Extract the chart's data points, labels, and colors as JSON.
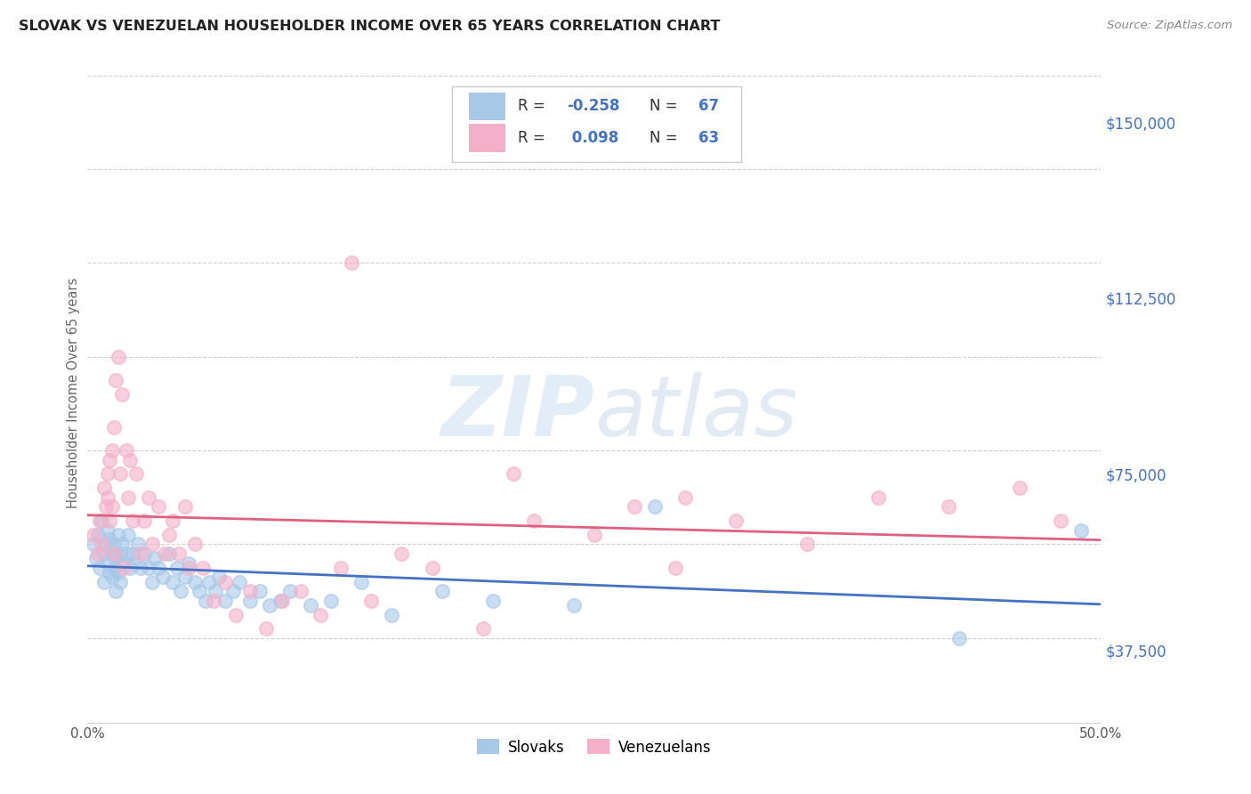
{
  "title": "SLOVAK VS VENEZUELAN HOUSEHOLDER INCOME OVER 65 YEARS CORRELATION CHART",
  "source": "Source: ZipAtlas.com",
  "ylabel": "Householder Income Over 65 years",
  "xlim": [
    0.0,
    0.5
  ],
  "ylim": [
    22000,
    162500
  ],
  "xticks": [
    0.0,
    0.1,
    0.2,
    0.3,
    0.4,
    0.5
  ],
  "xticklabels": [
    "0.0%",
    "",
    "",
    "",
    "",
    "50.0%"
  ],
  "ytick_positions": [
    37500,
    75000,
    112500,
    150000
  ],
  "ytick_labels": [
    "$37,500",
    "$75,000",
    "$112,500",
    "$150,000"
  ],
  "slovak_color": "#a8c8e8",
  "venezuelan_color": "#f4b0c8",
  "slovak_line_color": "#4472c4",
  "venezuelan_line_color": "#e06080",
  "ytick_color": "#4472c4",
  "watermark_color": "#c8ddf0",
  "grid_color": "#d0d0d0",
  "background_color": "#ffffff",
  "legend_box_color": "#ffffff",
  "legend_border_color": "#cccccc",
  "title_color": "#222222",
  "source_color": "#888888",
  "ylabel_color": "#666666",
  "xtick_color": "#555555",
  "slovak_R": -0.258,
  "slovak_N": 67,
  "venezuelan_R": 0.098,
  "venezuelan_N": 63,
  "slovak_x": [
    0.003,
    0.004,
    0.005,
    0.006,
    0.007,
    0.008,
    0.008,
    0.009,
    0.01,
    0.01,
    0.011,
    0.011,
    0.012,
    0.012,
    0.013,
    0.013,
    0.014,
    0.014,
    0.015,
    0.015,
    0.016,
    0.016,
    0.017,
    0.018,
    0.019,
    0.02,
    0.021,
    0.022,
    0.023,
    0.025,
    0.026,
    0.028,
    0.03,
    0.032,
    0.033,
    0.035,
    0.037,
    0.04,
    0.042,
    0.044,
    0.046,
    0.048,
    0.05,
    0.053,
    0.055,
    0.058,
    0.06,
    0.063,
    0.065,
    0.068,
    0.072,
    0.075,
    0.08,
    0.085,
    0.09,
    0.095,
    0.1,
    0.11,
    0.12,
    0.135,
    0.15,
    0.175,
    0.2,
    0.24,
    0.28,
    0.43,
    0.49
  ],
  "slovak_y": [
    60000,
    57000,
    62000,
    55000,
    65000,
    58000,
    52000,
    60000,
    56000,
    63000,
    54000,
    61000,
    58000,
    53000,
    60000,
    55000,
    57000,
    50000,
    62000,
    54000,
    58000,
    52000,
    60000,
    56000,
    58000,
    62000,
    55000,
    58000,
    56000,
    60000,
    55000,
    58000,
    55000,
    52000,
    57000,
    55000,
    53000,
    58000,
    52000,
    55000,
    50000,
    53000,
    56000,
    52000,
    50000,
    48000,
    52000,
    50000,
    53000,
    48000,
    50000,
    52000,
    48000,
    50000,
    47000,
    48000,
    50000,
    47000,
    48000,
    52000,
    45000,
    50000,
    48000,
    47000,
    68000,
    40000,
    63000
  ],
  "venezuelan_x": [
    0.003,
    0.005,
    0.006,
    0.007,
    0.008,
    0.009,
    0.01,
    0.01,
    0.011,
    0.011,
    0.012,
    0.012,
    0.013,
    0.013,
    0.014,
    0.015,
    0.016,
    0.017,
    0.018,
    0.019,
    0.02,
    0.021,
    0.022,
    0.024,
    0.026,
    0.028,
    0.03,
    0.032,
    0.035,
    0.038,
    0.04,
    0.042,
    0.045,
    0.048,
    0.05,
    0.053,
    0.057,
    0.062,
    0.068,
    0.073,
    0.08,
    0.088,
    0.096,
    0.105,
    0.115,
    0.125,
    0.14,
    0.155,
    0.17,
    0.195,
    0.22,
    0.25,
    0.27,
    0.295,
    0.32,
    0.355,
    0.39,
    0.425,
    0.46,
    0.48,
    0.13,
    0.21,
    0.29
  ],
  "venezuelan_y": [
    62000,
    58000,
    65000,
    60000,
    72000,
    68000,
    70000,
    75000,
    78000,
    65000,
    80000,
    68000,
    58000,
    85000,
    95000,
    100000,
    75000,
    92000,
    55000,
    80000,
    70000,
    78000,
    65000,
    75000,
    58000,
    65000,
    70000,
    60000,
    68000,
    58000,
    62000,
    65000,
    58000,
    68000,
    55000,
    60000,
    55000,
    48000,
    52000,
    45000,
    50000,
    42000,
    48000,
    50000,
    45000,
    55000,
    48000,
    58000,
    55000,
    42000,
    65000,
    62000,
    68000,
    70000,
    65000,
    60000,
    70000,
    68000,
    72000,
    65000,
    120000,
    75000,
    55000
  ]
}
